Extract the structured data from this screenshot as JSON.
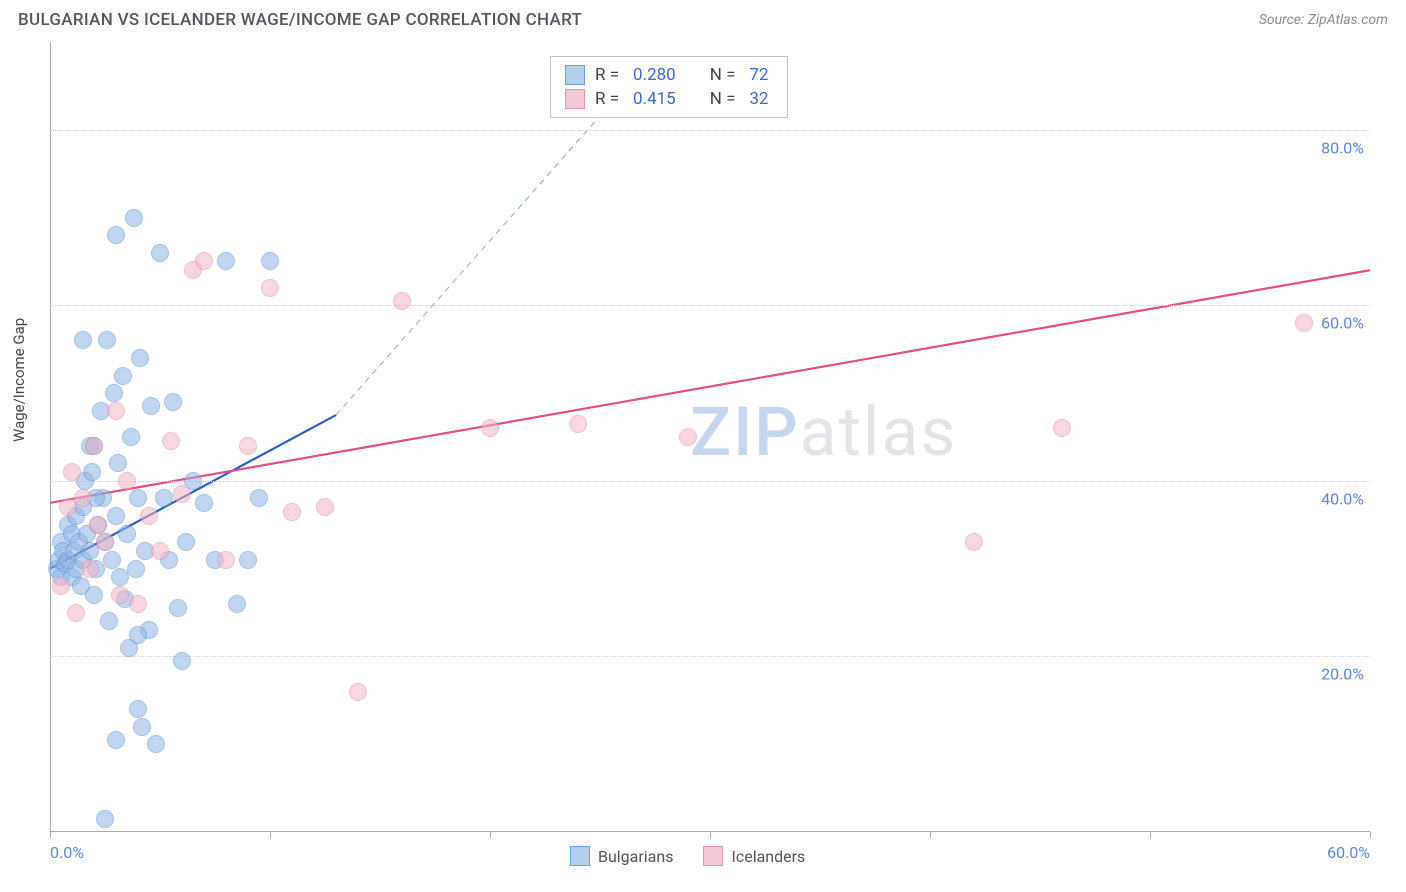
{
  "title": "BULGARIAN VS ICELANDER WAGE/INCOME GAP CORRELATION CHART",
  "source_prefix": "Source: ",
  "source": "ZipAtlas.com",
  "ylabel": "Wage/Income Gap",
  "watermark_a": "ZIP",
  "watermark_b": "atlas",
  "chart": {
    "type": "scatter",
    "xlim": [
      0,
      60
    ],
    "ylim": [
      0,
      90
    ],
    "x_ticks": [
      0,
      10,
      20,
      30,
      40,
      50,
      60
    ],
    "x_tick_labels": {
      "0": "0.0%",
      "60": "60.0%"
    },
    "y_gridlines": [
      20,
      40,
      60,
      80
    ],
    "y_tick_labels": {
      "20": "20.0%",
      "40": "40.0%",
      "60": "60.0%",
      "80": "80.0%"
    },
    "grid_color": "#d0d0d6",
    "axis_color": "#a8a8b4",
    "tick_label_color": "#5b86d6",
    "background": "#ffffff",
    "marker_radius": 9,
    "marker_opacity": 0.55,
    "series": [
      {
        "name": "Bulgarians",
        "fill": "#8fb6e6",
        "stroke": "#5f8fd4",
        "reg_color": "#2a5fbf",
        "reg_width": 2.2,
        "R": "0.280",
        "N": "72",
        "regression": {
          "x1": 0,
          "y1": 30,
          "x2": 13,
          "y2": 47.5
        },
        "regression_ext": {
          "x1": 13,
          "y1": 47.5,
          "x2": 25.5,
          "y2": 83
        },
        "points": [
          [
            0.3,
            30
          ],
          [
            0.4,
            31
          ],
          [
            0.5,
            29
          ],
          [
            0.5,
            33
          ],
          [
            0.6,
            32
          ],
          [
            0.7,
            30.5
          ],
          [
            0.8,
            31
          ],
          [
            0.8,
            35
          ],
          [
            1,
            29
          ],
          [
            1,
            34
          ],
          [
            1.1,
            32
          ],
          [
            1.2,
            30
          ],
          [
            1.2,
            36
          ],
          [
            1.3,
            33
          ],
          [
            1.4,
            28
          ],
          [
            1.5,
            31
          ],
          [
            1.5,
            37
          ],
          [
            1.6,
            40
          ],
          [
            1.7,
            34
          ],
          [
            1.8,
            32
          ],
          [
            1.9,
            41
          ],
          [
            2,
            27
          ],
          [
            2,
            44
          ],
          [
            2.1,
            30
          ],
          [
            2.2,
            35
          ],
          [
            2.3,
            48
          ],
          [
            2.4,
            38
          ],
          [
            2.5,
            33
          ],
          [
            2.6,
            56
          ],
          [
            2.7,
            24
          ],
          [
            2.8,
            31
          ],
          [
            2.9,
            50
          ],
          [
            3,
            68
          ],
          [
            3,
            36
          ],
          [
            3.1,
            42
          ],
          [
            3.2,
            29
          ],
          [
            3.3,
            52
          ],
          [
            3.4,
            26.5
          ],
          [
            3.5,
            34
          ],
          [
            3.6,
            21
          ],
          [
            3.7,
            45
          ],
          [
            3.8,
            70
          ],
          [
            3.9,
            30
          ],
          [
            4,
            14
          ],
          [
            4,
            38
          ],
          [
            4.1,
            54
          ],
          [
            4.2,
            12
          ],
          [
            4.3,
            32
          ],
          [
            4.5,
            23
          ],
          [
            4.6,
            48.5
          ],
          [
            4.8,
            10
          ],
          [
            5,
            66
          ],
          [
            5.2,
            38
          ],
          [
            5.4,
            31
          ],
          [
            5.6,
            49
          ],
          [
            5.8,
            25.5
          ],
          [
            6,
            19.5
          ],
          [
            6.2,
            33
          ],
          [
            6.5,
            40
          ],
          [
            7,
            37.5
          ],
          [
            7.5,
            31
          ],
          [
            8,
            65
          ],
          [
            8.5,
            26
          ],
          [
            9,
            31
          ],
          [
            9.5,
            38
          ],
          [
            10,
            65
          ],
          [
            2.5,
            1.5
          ],
          [
            4,
            22.5
          ],
          [
            3,
            10.5
          ],
          [
            1.8,
            44
          ],
          [
            1.5,
            56
          ],
          [
            2.1,
            38
          ]
        ]
      },
      {
        "name": "Icelanders",
        "fill": "#f2b5c6",
        "stroke": "#e98aa8",
        "reg_color": "#e14f7e",
        "reg_width": 2.2,
        "R": "0.415",
        "N": "32",
        "regression": {
          "x1": 0,
          "y1": 37.5,
          "x2": 60,
          "y2": 64
        },
        "points": [
          [
            0.5,
            28
          ],
          [
            0.8,
            37
          ],
          [
            1,
            41
          ],
          [
            1.2,
            25
          ],
          [
            1.5,
            38
          ],
          [
            1.8,
            30
          ],
          [
            2,
            44
          ],
          [
            2.2,
            35
          ],
          [
            2.5,
            33
          ],
          [
            3,
            48
          ],
          [
            3.2,
            27
          ],
          [
            3.5,
            40
          ],
          [
            4,
            26
          ],
          [
            4.5,
            36
          ],
          [
            5,
            32
          ],
          [
            5.5,
            44.5
          ],
          [
            6,
            38.5
          ],
          [
            6.5,
            64
          ],
          [
            7,
            65
          ],
          [
            8,
            31
          ],
          [
            9,
            44
          ],
          [
            10,
            62
          ],
          [
            11,
            36.5
          ],
          [
            12.5,
            37
          ],
          [
            14,
            16
          ],
          [
            16,
            60.5
          ],
          [
            20,
            46
          ],
          [
            24,
            46.5
          ],
          [
            29,
            45
          ],
          [
            42,
            33
          ],
          [
            46,
            46
          ],
          [
            57,
            58
          ]
        ]
      }
    ],
    "legend_top": [
      {
        "swatch_fill": "#b4cfee",
        "swatch_stroke": "#6f9bd8",
        "R": "0.280",
        "N": "72"
      },
      {
        "swatch_fill": "#f4c9d6",
        "swatch_stroke": "#e892ae",
        "R": "0.415",
        "N": "32"
      }
    ],
    "legend_bottom": [
      {
        "swatch_fill": "#b4cfee",
        "swatch_stroke": "#6f9bd8",
        "label": "Bulgarians"
      },
      {
        "swatch_fill": "#f4c9d6",
        "swatch_stroke": "#e892ae",
        "label": "Icelanders"
      }
    ],
    "legend_labels": {
      "R": "R =",
      "N": "N ="
    }
  }
}
